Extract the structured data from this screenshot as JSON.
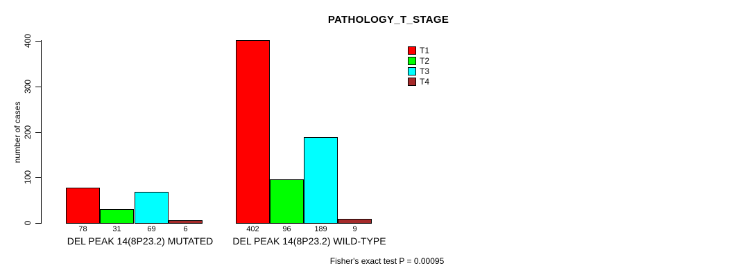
{
  "chart_data": {
    "type": "bar",
    "title": "PATHOLOGY_T_STAGE",
    "ylabel": "number of cases",
    "xlabel": "",
    "ylim": [
      0,
      400
    ],
    "yticks": [
      0,
      100,
      200,
      300,
      400
    ],
    "grid": false,
    "legend_position": "top-right",
    "categories": [
      "DEL PEAK 14(8P23.2) MUTATED",
      "DEL PEAK 14(8P23.2) WILD-TYPE"
    ],
    "series": [
      {
        "name": "T1",
        "color": "#FF0000",
        "values": [
          78,
          402
        ]
      },
      {
        "name": "T2",
        "color": "#00FF00",
        "values": [
          31,
          96
        ]
      },
      {
        "name": "T3",
        "color": "#00FFFF",
        "values": [
          69,
          189
        ]
      },
      {
        "name": "T4",
        "color": "#A52A2A",
        "values": [
          6,
          9
        ]
      }
    ],
    "bar_value_labels": [
      [
        "78",
        "31",
        "69",
        "6"
      ],
      [
        "402",
        "96",
        "189",
        "9"
      ]
    ],
    "footer": "Fisher's exact test P = 0.00095",
    "colors": {
      "axis": "#000000",
      "text": "#000000",
      "background": "#FFFFFF"
    }
  }
}
